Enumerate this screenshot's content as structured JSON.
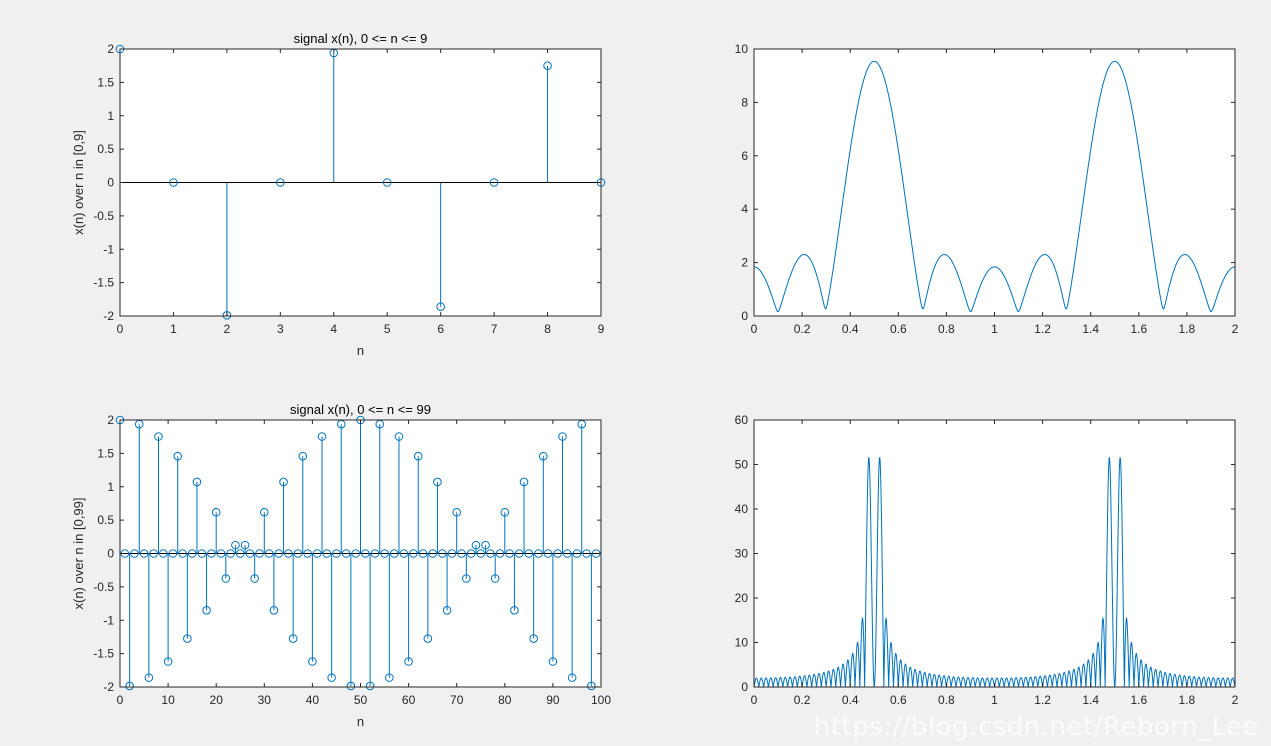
{
  "figure": {
    "background": "#f0f0f0",
    "axes_background": "#ffffff",
    "line_color": "#0072bd",
    "watermark": "https://blog.csdn.net/Reborn_Lee"
  },
  "chart_data": [
    {
      "id": "stem10",
      "type": "stem",
      "title": "signal x(n), 0 <= n <= 9",
      "xlabel": "n",
      "ylabel": "x(n) over n in [0,9]",
      "xlim": [
        0,
        9
      ],
      "ylim": [
        -2,
        2
      ],
      "xticks": [
        0,
        1,
        2,
        3,
        4,
        5,
        6,
        7,
        8,
        9
      ],
      "yticks": [
        -2,
        -1.5,
        -1,
        -0.5,
        0,
        0.5,
        1,
        1.5,
        2
      ],
      "series": [
        {
          "x": [
            0,
            1,
            2,
            3,
            4,
            5,
            6,
            7,
            8,
            9
          ],
          "y": [
            2,
            0,
            -1.99,
            0,
            1.94,
            0,
            -1.86,
            0,
            1.75,
            0
          ]
        }
      ]
    },
    {
      "id": "mag10",
      "type": "line",
      "title": "",
      "xlabel": "",
      "ylabel": "",
      "xlim": [
        0,
        2
      ],
      "ylim": [
        0,
        10
      ],
      "xticks": [
        0,
        0.2,
        0.4,
        0.6,
        0.8,
        1,
        1.2,
        1.4,
        1.6,
        1.8,
        2
      ],
      "yticks": [
        0,
        2,
        4,
        6,
        8,
        10
      ],
      "series": [
        {
          "generator": "abs_dtft",
          "n": [
            0,
            1,
            2,
            3,
            4,
            5,
            6,
            7,
            8,
            9
          ],
          "x": [
            2,
            0,
            -1.99,
            0,
            1.94,
            0,
            -1.86,
            0,
            1.75,
            0
          ],
          "samples": 801
        }
      ]
    },
    {
      "id": "stem100",
      "type": "stem",
      "title": "signal x(n), 0 <= n <= 99",
      "xlabel": "n",
      "ylabel": "x(n) over n in [0,99]",
      "xlim": [
        0,
        100
      ],
      "ylim": [
        -2,
        2
      ],
      "xticks": [
        0,
        10,
        20,
        30,
        40,
        50,
        60,
        70,
        80,
        90,
        100
      ],
      "yticks": [
        -2,
        -1.5,
        -1,
        -0.5,
        0,
        0.5,
        1,
        1.5,
        2
      ],
      "series": [
        {
          "generator": "cos_sum",
          "n_range": [
            0,
            99
          ],
          "f1": 0.48,
          "f2": 0.52
        }
      ]
    },
    {
      "id": "mag100",
      "type": "line",
      "title": "",
      "xlabel": "",
      "ylabel": "",
      "xlim": [
        0,
        2
      ],
      "ylim": [
        0,
        60
      ],
      "xticks": [
        0,
        0.2,
        0.4,
        0.6,
        0.8,
        1,
        1.2,
        1.4,
        1.6,
        1.8,
        2
      ],
      "yticks": [
        0,
        10,
        20,
        30,
        40,
        50,
        60
      ],
      "series": [
        {
          "generator": "abs_dtft_cos_sum",
          "n_range": [
            0,
            99
          ],
          "f1": 0.48,
          "f2": 0.52,
          "samples": 2001
        }
      ]
    }
  ]
}
